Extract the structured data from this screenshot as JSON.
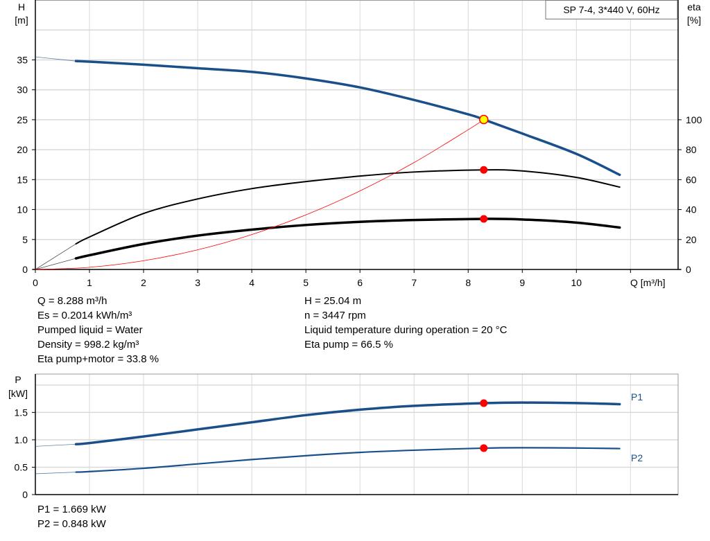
{
  "title_box": "SP 7-4, 3*440 V, 60Hz",
  "colors": {
    "head": "#1a4f8a",
    "power": "#1a4f8a",
    "efficiency": "#000000",
    "system_curve": "#ff0000",
    "duty_point": "#ff0000",
    "duty_point_fill": "#ffff00",
    "grid": "#d9d9d9"
  },
  "chart_data": [
    {
      "type": "line",
      "xlabel": "Q [m³/h]",
      "ylabel_left": [
        "H",
        "[m]"
      ],
      "ylabel_right": [
        "eta",
        "[%]"
      ],
      "xlim": [
        0,
        11.88
      ],
      "ylim_left": [
        0,
        45
      ],
      "ylim_right": [
        0,
        180
      ],
      "x_ticks": [
        "0",
        "1",
        "2",
        "3",
        "4",
        "5",
        "6",
        "7",
        "8",
        "9",
        "10"
      ],
      "y_ticks_left": [
        "0",
        "5",
        "10",
        "15",
        "20",
        "25",
        "30",
        "35"
      ],
      "y_ticks_right": [
        "0",
        "20",
        "40",
        "60",
        "80",
        "100"
      ],
      "grid": true,
      "series": [
        {
          "key": "head",
          "axis": "left",
          "x": [
            0,
            0.75,
            1,
            2,
            3,
            4,
            5,
            6,
            7,
            8,
            8.288,
            9,
            10,
            10.8
          ],
          "y": [
            35.5,
            34.8,
            34.7,
            34.2,
            33.6,
            33.0,
            31.9,
            30.4,
            28.3,
            25.9,
            25.04,
            22.7,
            19.3,
            15.8
          ]
        },
        {
          "key": "eta_pump",
          "axis": "right",
          "x": [
            0,
            0.75,
            1,
            2,
            3,
            4,
            5,
            6,
            7,
            8.288,
            9,
            10,
            10.8
          ],
          "y": [
            0,
            17.1,
            21.7,
            37.4,
            47.1,
            54.0,
            58.7,
            62.4,
            65.1,
            66.5,
            65.8,
            61.5,
            55.0
          ]
        },
        {
          "key": "eta_pump_motor",
          "axis": "right",
          "x": [
            0,
            0.75,
            1,
            2,
            3,
            4,
            5,
            6,
            7,
            8.288,
            9,
            10,
            10.8
          ],
          "y": [
            0,
            7.4,
            9.5,
            17.0,
            22.6,
            26.6,
            29.7,
            31.8,
            33.0,
            33.8,
            33.4,
            31.3,
            28.0
          ]
        },
        {
          "key": "system_curve",
          "axis": "left",
          "x": [
            0,
            1,
            2,
            3,
            4,
            5,
            6,
            7,
            8,
            8.288
          ],
          "y": [
            0,
            0.36,
            1.46,
            3.28,
            5.83,
            9.11,
            13.12,
            17.86,
            23.33,
            25.04
          ]
        }
      ],
      "duty_points": [
        {
          "key": "head",
          "axis": "left",
          "x": 8.288,
          "y": 25.04
        },
        {
          "key": "eta_pump",
          "axis": "right",
          "x": 8.288,
          "y": 66.5
        },
        {
          "key": "eta_pump_motor",
          "axis": "right",
          "x": 8.288,
          "y": 33.8
        }
      ]
    },
    {
      "type": "line",
      "ylabel": [
        "P",
        "[kW]"
      ],
      "xlim": [
        0,
        11.88
      ],
      "ylim": [
        0,
        2.2
      ],
      "y_ticks": [
        "0",
        "0.5",
        "1.0",
        "1.5"
      ],
      "grid": true,
      "series": [
        {
          "name": "P1",
          "x": [
            0,
            0.75,
            1,
            2,
            3,
            4,
            5,
            6,
            7,
            8.288,
            9,
            10,
            10.8
          ],
          "y": [
            0.88,
            0.92,
            0.94,
            1.06,
            1.19,
            1.32,
            1.45,
            1.55,
            1.62,
            1.669,
            1.68,
            1.67,
            1.65
          ]
        },
        {
          "name": "P2",
          "x": [
            0,
            0.75,
            1,
            2,
            3,
            4,
            5,
            6,
            7,
            8.288,
            9,
            10,
            10.8
          ],
          "y": [
            0.38,
            0.41,
            0.42,
            0.48,
            0.56,
            0.64,
            0.71,
            0.77,
            0.81,
            0.848,
            0.855,
            0.85,
            0.84
          ]
        }
      ],
      "duty_points": [
        {
          "series": "P1",
          "x": 8.288,
          "y": 1.669
        },
        {
          "series": "P2",
          "x": 8.288,
          "y": 0.848
        }
      ]
    }
  ],
  "operating_point": {
    "left": [
      "Q = 8.288 m³/h",
      "Es = 0.2014 kWh/m³",
      "Pumped liquid = Water",
      "Density = 998.2 kg/m³",
      "Eta pump+motor = 33.8 %"
    ],
    "right": [
      "H = 25.04 m",
      "n = 3447 rpm",
      "Liquid temperature during operation = 20 °C",
      "Eta pump = 66.5 %"
    ]
  },
  "power_point": [
    "P1 = 1.669 kW",
    "P2 = 0.848 kW"
  ]
}
